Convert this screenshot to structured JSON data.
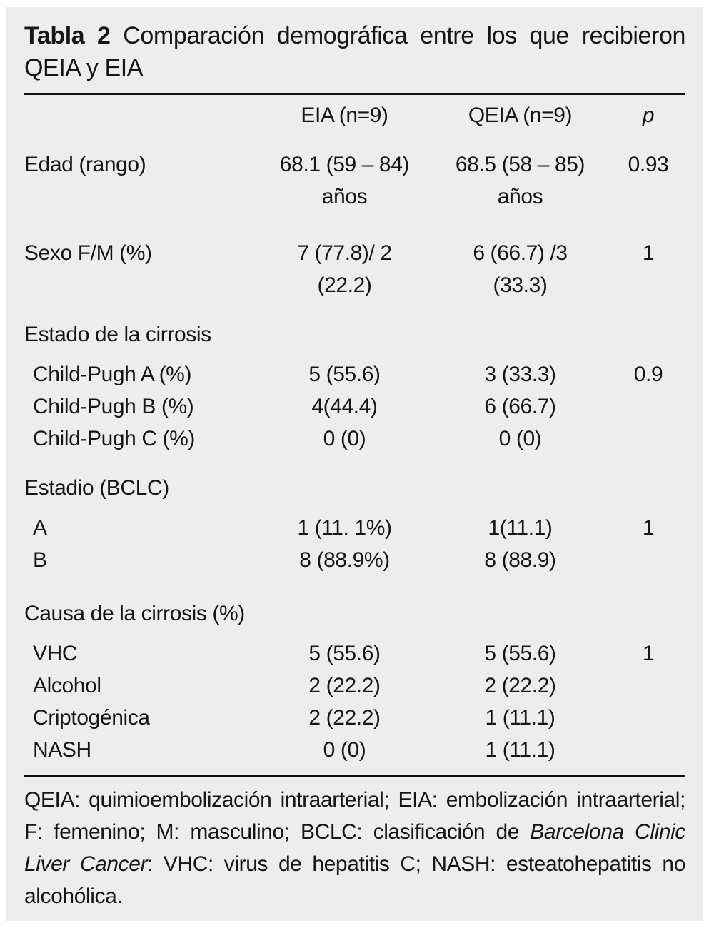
{
  "title": {
    "prefix": "Tabla 2",
    "line1_rest": "Comparación demográfica entre los que recibieron",
    "line2": "QEIA y EIA"
  },
  "columns": {
    "eia": "EIA (n=9)",
    "qeia": "QEIA (n=9)",
    "p": "p"
  },
  "rows": [
    {
      "label": "Edad (rango)",
      "eia": "68.1 (59 – 84)\naños",
      "qeia": "68.5 (58 – 85)\naños",
      "p": "0.93"
    },
    {
      "label": "Sexo F/M (%)",
      "eia": "7 (77.8)/ 2\n(22.2)",
      "qeia": "6 (66.7) /3\n(33.3)",
      "p": "1"
    },
    {
      "label": "Estado de la cirrosis"
    },
    {
      "label": "Child-Pugh A (%)",
      "eia": "5 (55.6)",
      "qeia": "3 (33.3)",
      "p": "0.9"
    },
    {
      "label": "Child-Pugh B (%)",
      "eia": "4(44.4)",
      "qeia": "6 (66.7)",
      "p": ""
    },
    {
      "label": "Child-Pugh C (%)",
      "eia": "0 (0)",
      "qeia": "0 (0)",
      "p": ""
    },
    {
      "label": "Estadio (BCLC)"
    },
    {
      "label": "A",
      "eia": "1 (11. 1%)",
      "qeia": "1(11.1)",
      "p": "1"
    },
    {
      "label": "B",
      "eia": "8 (88.9%)",
      "qeia": "8 (88.9)",
      "p": ""
    },
    {
      "label": "Causa de la cirrosis (%)"
    },
    {
      "label": "VHC",
      "eia": "5 (55.6)",
      "qeia": "5 (55.6)",
      "p": "1"
    },
    {
      "label": "Alcohol",
      "eia": "2 (22.2)",
      "qeia": "2 (22.2)",
      "p": ""
    },
    {
      "label": "Criptogénica",
      "eia": "2 (22.2)",
      "qeia": "1 (11.1)",
      "p": ""
    },
    {
      "label": "NASH",
      "eia": "0 (0)",
      "qeia": "1 (11.1)",
      "p": ""
    }
  ],
  "footnote": {
    "segments": [
      {
        "text": "QEIA: quimioembolización intraarterial; EIA: embolización intraarterial; F: femenino; M: masculino; BCLC: clasificación de "
      },
      {
        "text": "Barcelona Clinic Liver Cancer"
      },
      {
        "text": ": VHC: virus de hepatitis C; NASH: esteatohepatitis no alcohólica."
      }
    ]
  },
  "colors": {
    "card_background": "#ededed",
    "page_background": "#ffffff",
    "text": "#161616",
    "rule": "#111111"
  }
}
